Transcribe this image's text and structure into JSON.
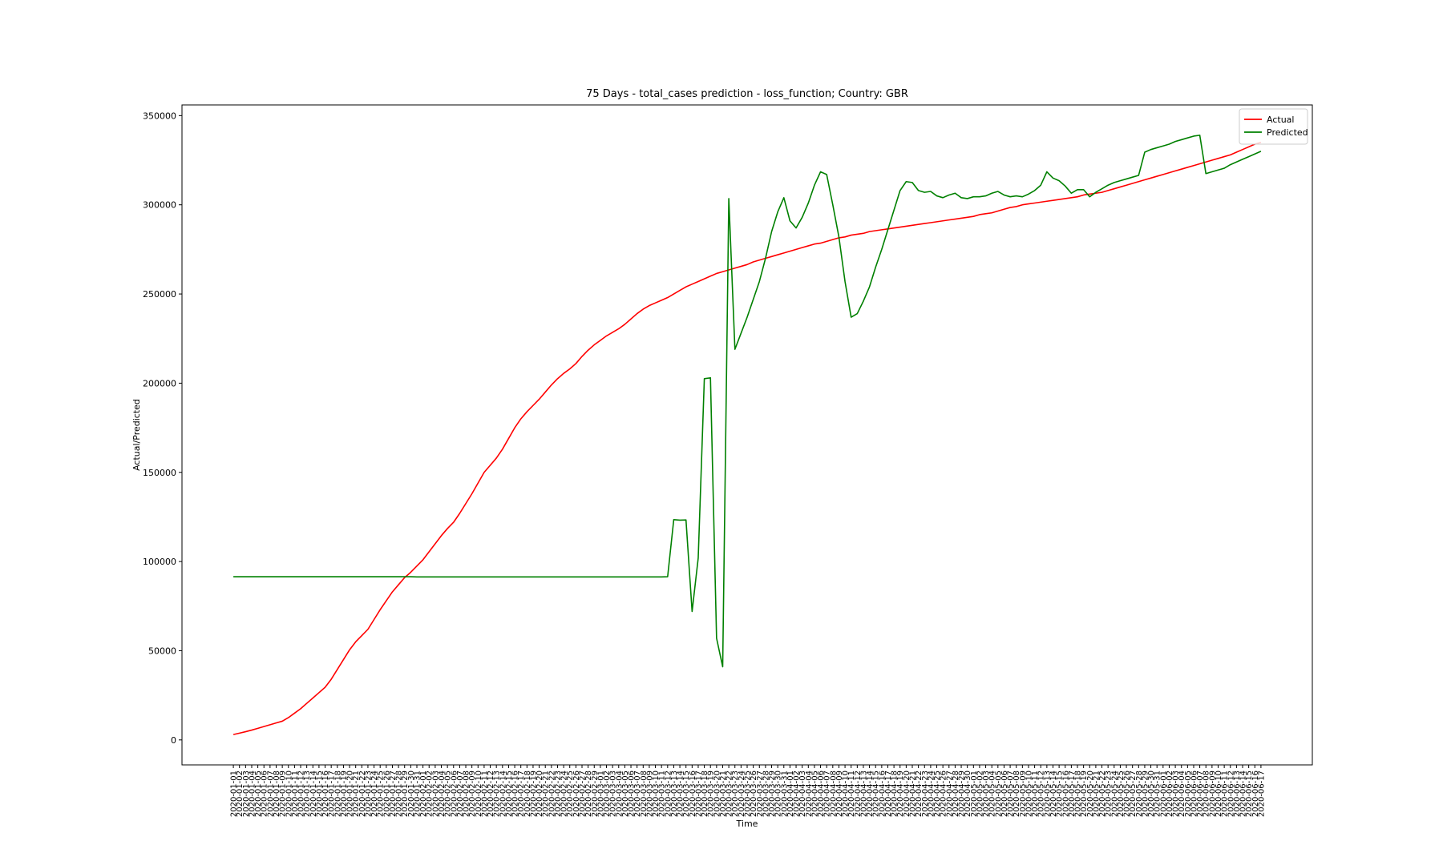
{
  "chart_data": {
    "type": "line",
    "title": "75 Days - total_cases prediction - loss_function; Country: GBR",
    "x_label": "Time",
    "y_label": "Actual/Predicted",
    "categories": [
      "2020-01-01",
      "2020-01-02",
      "2020-01-03",
      "2020-01-04",
      "2020-01-05",
      "2020-01-06",
      "2020-01-07",
      "2020-01-08",
      "2020-01-09",
      "2020-01-10",
      "2020-01-11",
      "2020-01-12",
      "2020-01-13",
      "2020-01-14",
      "2020-01-15",
      "2020-01-16",
      "2020-01-17",
      "2020-01-18",
      "2020-01-19",
      "2020-01-20",
      "2020-01-21",
      "2020-01-22",
      "2020-01-23",
      "2020-01-24",
      "2020-01-25",
      "2020-01-26",
      "2020-01-27",
      "2020-01-28",
      "2020-01-29",
      "2020-01-30",
      "2020-01-31",
      "2020-02-01",
      "2020-02-02",
      "2020-02-03",
      "2020-02-04",
      "2020-02-05",
      "2020-02-06",
      "2020-02-07",
      "2020-02-08",
      "2020-02-09",
      "2020-02-10",
      "2020-02-11",
      "2020-02-12",
      "2020-02-13",
      "2020-02-14",
      "2020-02-15",
      "2020-02-16",
      "2020-02-17",
      "2020-02-18",
      "2020-02-19",
      "2020-02-20",
      "2020-02-21",
      "2020-02-22",
      "2020-02-23",
      "2020-02-24",
      "2020-02-25",
      "2020-02-26",
      "2020-02-27",
      "2020-02-28",
      "2020-02-29",
      "2020-03-01",
      "2020-03-02",
      "2020-03-03",
      "2020-03-04",
      "2020-03-05",
      "2020-03-06",
      "2020-03-07",
      "2020-03-08",
      "2020-03-09",
      "2020-03-10",
      "2020-03-11",
      "2020-03-12",
      "2020-03-13",
      "2020-03-14",
      "2020-03-15",
      "2020-03-16",
      "2020-03-17",
      "2020-03-18",
      "2020-03-19",
      "2020-03-20",
      "2020-03-21",
      "2020-03-22",
      "2020-03-23",
      "2020-03-24",
      "2020-03-25",
      "2020-03-26",
      "2020-03-27",
      "2020-03-28",
      "2020-03-29",
      "2020-03-30",
      "2020-03-31",
      "2020-04-01",
      "2020-04-02",
      "2020-04-03",
      "2020-04-04",
      "2020-04-05",
      "2020-04-06",
      "2020-04-07",
      "2020-04-08",
      "2020-04-09",
      "2020-04-10",
      "2020-04-11",
      "2020-04-12",
      "2020-04-13",
      "2020-04-14",
      "2020-04-15",
      "2020-04-16",
      "2020-04-17",
      "2020-04-18",
      "2020-04-19",
      "2020-04-20",
      "2020-04-21",
      "2020-04-22",
      "2020-04-23",
      "2020-04-24",
      "2020-04-25",
      "2020-04-26",
      "2020-04-27",
      "2020-04-28",
      "2020-04-29",
      "2020-04-30",
      "2020-05-01",
      "2020-05-02",
      "2020-05-03",
      "2020-05-04",
      "2020-05-05",
      "2020-05-06",
      "2020-05-07",
      "2020-05-08",
      "2020-05-09",
      "2020-05-10",
      "2020-05-11",
      "2020-05-12",
      "2020-05-13",
      "2020-05-14",
      "2020-05-15",
      "2020-05-16",
      "2020-05-17",
      "2020-05-18",
      "2020-05-19",
      "2020-05-20",
      "2020-05-21",
      "2020-05-22",
      "2020-05-23",
      "2020-05-24",
      "2020-05-25",
      "2020-05-26",
      "2020-05-27",
      "2020-05-28",
      "2020-05-29",
      "2020-05-30",
      "2020-05-31",
      "2020-06-01",
      "2020-06-02",
      "2020-06-03",
      "2020-06-04",
      "2020-06-05",
      "2020-06-06",
      "2020-06-07",
      "2020-06-08",
      "2020-06-09",
      "2020-06-10",
      "2020-06-11",
      "2020-06-12",
      "2020-06-13",
      "2020-06-14",
      "2020-06-15",
      "2020-06-16",
      "2020-06-17"
    ],
    "series": [
      {
        "name": "Actual",
        "color": "#ff0000",
        "values": [
          3000,
          3800,
          4600,
          5500,
          6500,
          7500,
          8500,
          9500,
          10500,
          12500,
          15000,
          17500,
          20500,
          23500,
          26500,
          29500,
          34000,
          39500,
          45000,
          50500,
          55000,
          58500,
          62000,
          67500,
          73000,
          78000,
          83000,
          87000,
          91000,
          94000,
          97500,
          101000,
          105500,
          110000,
          114500,
          118500,
          122000,
          127000,
          132500,
          138000,
          144000,
          150000,
          154000,
          158000,
          163000,
          169000,
          175000,
          180000,
          184000,
          187500,
          191000,
          195000,
          199000,
          202500,
          205500,
          208000,
          211000,
          215000,
          218500,
          221500,
          224000,
          226500,
          228500,
          230500,
          233000,
          236000,
          239000,
          241500,
          243500,
          245000,
          246500,
          248000,
          250000,
          252000,
          254000,
          255500,
          257000,
          258500,
          260000,
          261500,
          262500,
          263500,
          264500,
          265500,
          266500,
          268000,
          269000,
          270000,
          271000,
          272000,
          273000,
          274000,
          275000,
          276000,
          277000,
          278000,
          278500,
          279500,
          280500,
          281500,
          282000,
          283000,
          283500,
          284000,
          285000,
          285500,
          286000,
          286500,
          287000,
          287500,
          288000,
          288500,
          289000,
          289500,
          290000,
          290500,
          291000,
          291500,
          292000,
          292500,
          293000,
          293500,
          294500,
          295000,
          295500,
          296500,
          297500,
          298500,
          299000,
          300000,
          300500,
          301000,
          301500,
          302000,
          302500,
          303000,
          303500,
          304000,
          304500,
          305500,
          306000,
          306500,
          307000,
          308000,
          309000,
          310000,
          311000,
          312000,
          313000,
          314000,
          315000,
          316000,
          317000,
          318000,
          319000,
          320000,
          321000,
          322000,
          323000,
          324000,
          325000,
          326000,
          327000,
          328000,
          329500,
          331000,
          332500,
          334000,
          335000
        ]
      },
      {
        "name": "Predicted",
        "color": "#008000",
        "values": [
          91500,
          91500,
          91500,
          91500,
          91500,
          91500,
          91500,
          91500,
          91500,
          91500,
          91500,
          91500,
          91500,
          91500,
          91500,
          91500,
          91500,
          91500,
          91500,
          91500,
          91500,
          91500,
          91500,
          91500,
          91500,
          91500,
          91500,
          91500,
          91500,
          91500,
          91400,
          91400,
          91400,
          91400,
          91400,
          91400,
          91400,
          91400,
          91400,
          91400,
          91400,
          91400,
          91400,
          91400,
          91400,
          91400,
          91400,
          91400,
          91400,
          91400,
          91400,
          91400,
          91400,
          91400,
          91400,
          91400,
          91400,
          91400,
          91400,
          91400,
          91400,
          91400,
          91400,
          91400,
          91400,
          91400,
          91400,
          91400,
          91400,
          91400,
          91400,
          91500,
          123500,
          123200,
          123300,
          72000,
          102000,
          202500,
          203000,
          57000,
          41000,
          303500,
          219000,
          228000,
          237000,
          247000,
          257000,
          270000,
          285000,
          296000,
          304000,
          291000,
          287000,
          293000,
          301000,
          311000,
          318500,
          317000,
          300000,
          282000,
          257000,
          237000,
          239000,
          246000,
          254000,
          265000,
          275000,
          286000,
          297000,
          308000,
          313000,
          312500,
          308000,
          307000,
          307500,
          305000,
          304000,
          305500,
          306500,
          304000,
          303500,
          304500,
          304500,
          305000,
          306500,
          307500,
          305500,
          304500,
          305000,
          304500,
          306000,
          308000,
          311000,
          318500,
          315000,
          313500,
          310500,
          306500,
          308500,
          308500,
          304500,
          307000,
          309000,
          311000,
          312500,
          313500,
          314500,
          315500,
          316500,
          329500,
          331000,
          332000,
          333000,
          334000,
          335500,
          336500,
          337500,
          338500,
          339000,
          317500,
          318500,
          319500,
          320500,
          322500,
          324000,
          325500,
          327000,
          328500,
          330000
        ]
      }
    ],
    "ylim": [
      -14000,
      356000
    ],
    "yticks": [
      0,
      50000,
      100000,
      150000,
      200000,
      250000,
      300000,
      350000
    ],
    "legend": "upper right"
  }
}
